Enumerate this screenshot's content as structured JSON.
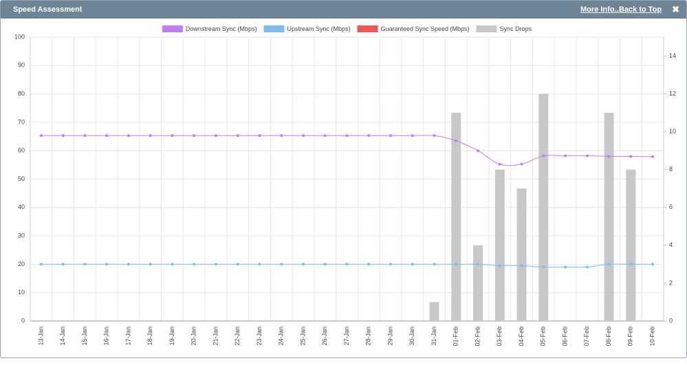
{
  "header": {
    "title": "Speed Assessment",
    "links": [
      "More Info...",
      "Back to Top"
    ],
    "close": "✖"
  },
  "chart_data": {
    "type": "line",
    "categories": [
      "13-Jan",
      "14-Jan",
      "15-Jan",
      "16-Jan",
      "17-Jan",
      "18-Jan",
      "19-Jan",
      "20-Jan",
      "21-Jan",
      "22-Jan",
      "23-Jan",
      "24-Jan",
      "25-Jan",
      "26-Jan",
      "27-Jan",
      "28-Jan",
      "29-Jan",
      "30-Jan",
      "31-Jan",
      "01-Feb",
      "02-Feb",
      "03-Feb",
      "04-Feb",
      "05-Feb",
      "06-Feb",
      "07-Feb",
      "08-Feb",
      "09-Feb",
      "10-Feb"
    ],
    "series": [
      {
        "name": "Downstream Sync (Mbps)",
        "color": "#c07ff0",
        "values": [
          65.3,
          65.3,
          65.3,
          65.3,
          65.3,
          65.3,
          65.3,
          65.3,
          65.3,
          65.3,
          65.3,
          65.3,
          65.3,
          65.3,
          65.3,
          65.3,
          65.3,
          65.3,
          65.3,
          63.5,
          60,
          55.2,
          55.3,
          58.2,
          58.2,
          58.2,
          58,
          58,
          57.9
        ]
      },
      {
        "name": "Upstream Sync (Mbps)",
        "color": "#7fbaf0",
        "values": [
          20,
          20,
          20,
          20,
          20,
          20,
          20,
          20,
          20,
          20,
          20,
          20,
          20,
          20,
          20,
          20,
          20,
          20,
          20,
          20,
          20,
          19.5,
          19.5,
          19,
          19,
          19,
          20,
          20,
          20
        ]
      },
      {
        "name": "Guaranteed Sync Speed (Mbps)",
        "color": "#f25555",
        "values": [
          null,
          null,
          null,
          null,
          null,
          null,
          null,
          null,
          null,
          null,
          null,
          null,
          null,
          null,
          null,
          null,
          null,
          null,
          null,
          null,
          null,
          null,
          null,
          null,
          null,
          null,
          null,
          null,
          null
        ]
      },
      {
        "name": "Sync Drops",
        "color": "#c8c8c8",
        "type": "bar",
        "axis": "y2",
        "values": [
          0,
          0,
          0,
          0,
          0,
          0,
          0,
          0,
          0,
          0,
          0,
          0,
          0,
          0,
          0,
          0,
          0,
          0,
          1,
          11,
          4,
          8,
          7,
          12,
          0,
          0,
          11,
          8,
          0
        ]
      }
    ],
    "ylim": [
      0,
      100
    ],
    "yticks": [
      0,
      10,
      20,
      30,
      40,
      50,
      60,
      70,
      80,
      90,
      100
    ],
    "y2lim": [
      0,
      15
    ],
    "y2ticks": [
      0,
      2,
      4,
      6,
      8,
      10,
      12,
      14
    ],
    "grid": true,
    "legend": "top"
  }
}
